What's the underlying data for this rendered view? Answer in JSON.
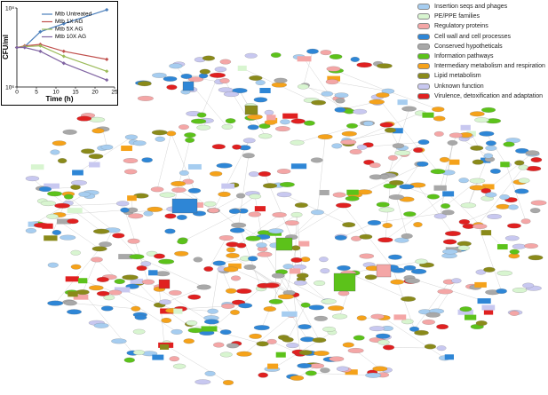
{
  "chart_data": {
    "type": "line",
    "xlabel": "Time (h)",
    "ylabel": "CFU/ml",
    "x": [
      0,
      2,
      6,
      12,
      23
    ],
    "series": [
      {
        "name": "Mtb Untreated",
        "color": "#4a7ebb",
        "values": [
          10000000,
          10500000,
          25000000,
          40000000,
          90000000
        ]
      },
      {
        "name": "Mtb 1X AG",
        "color": "#c0504d",
        "values": [
          10000000,
          11000000,
          12000000,
          8000000,
          5000000
        ]
      },
      {
        "name": "Mtb 5X AG",
        "color": "#9bbb59",
        "values": [
          10000000,
          10500000,
          11000000,
          6000000,
          2500000
        ]
      },
      {
        "name": "Mtb 10X AG",
        "color": "#8064a2",
        "values": [
          10000000,
          10000000,
          8000000,
          4000000,
          1500000
        ]
      }
    ],
    "xlim": [
      0,
      25
    ],
    "xticks": [
      0,
      5,
      10,
      15,
      20,
      25
    ],
    "ylim": [
      1000000,
      100000000
    ],
    "log": true,
    "yticks": [
      {
        "value": 1000000,
        "label": "10⁶"
      },
      {
        "value": 100000000,
        "label": "10⁸"
      }
    ]
  },
  "network_legend": [
    {
      "name": "Insertion seqs and phages",
      "color": "#a6cdf0"
    },
    {
      "name": "PE/PPE families",
      "color": "#d8f5d0"
    },
    {
      "name": "Regulatory proteins",
      "color": "#f4a6a6"
    },
    {
      "name": "Cell wall and cell processes",
      "color": "#2e86d6"
    },
    {
      "name": "Conserved hypotheticals",
      "color": "#a8a8a8"
    },
    {
      "name": "Information pathways",
      "color": "#5cc21a"
    },
    {
      "name": "Intermediary metabolism and respiration",
      "color": "#f5a21a"
    },
    {
      "name": "Lipid metabolism",
      "color": "#8a8a1a"
    },
    {
      "name": "Unknown function",
      "color": "#c8c8f0"
    },
    {
      "name": "Virulence, detoxification and adaptation",
      "color": "#e02020"
    }
  ]
}
